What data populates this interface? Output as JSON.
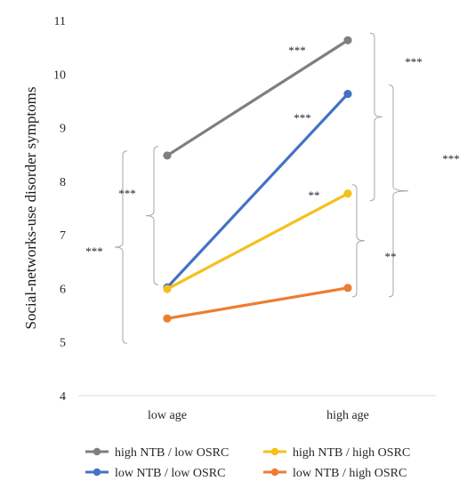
{
  "chart_data": {
    "type": "line",
    "title": "",
    "xlabel": "",
    "ylabel": "Social-networks-use disorder symptoms",
    "categories": [
      "low age",
      "high age"
    ],
    "ylim": [
      4,
      11
    ],
    "yticks": [
      4,
      5,
      6,
      7,
      8,
      9,
      10,
      11
    ],
    "grid": false,
    "legend_position": "bottom",
    "series": [
      {
        "name": "high NTB / low OSRC",
        "color": "#7f7f7f",
        "values": [
          8.48,
          10.63
        ]
      },
      {
        "name": "low NTB / low OSRC",
        "color": "#4472c4",
        "values": [
          6.02,
          9.63
        ]
      },
      {
        "name": "high NTB / high OSRC",
        "color": "#f5c01b",
        "values": [
          5.99,
          7.77
        ]
      },
      {
        "name": "low NTB / high OSRC",
        "color": "#ed7d31",
        "values": [
          5.44,
          6.01
        ]
      }
    ],
    "annotations": [
      {
        "text": "***",
        "series": "high NTB / low OSRC"
      },
      {
        "text": "***",
        "series": "low NTB / low OSRC"
      },
      {
        "text": "**",
        "series": "high NTB / high OSRC"
      },
      {
        "text": "***",
        "between": [
          "high NTB / low OSRC",
          "low NTB / low OSRC"
        ],
        "at": "low age"
      },
      {
        "text": "***",
        "between": [
          "high NTB / low OSRC",
          "low NTB / high OSRC"
        ],
        "at": "low age"
      },
      {
        "text": "***",
        "between": [
          "high NTB / low OSRC",
          "low NTB / low OSRC"
        ],
        "at": "high age"
      },
      {
        "text": "***",
        "between": [
          "high NTB / low OSRC",
          "low NTB / high OSRC"
        ],
        "at": "high age"
      },
      {
        "text": "**",
        "between": [
          "high NTB / high OSRC",
          "low NTB / high OSRC"
        ],
        "at": "high age"
      }
    ]
  }
}
